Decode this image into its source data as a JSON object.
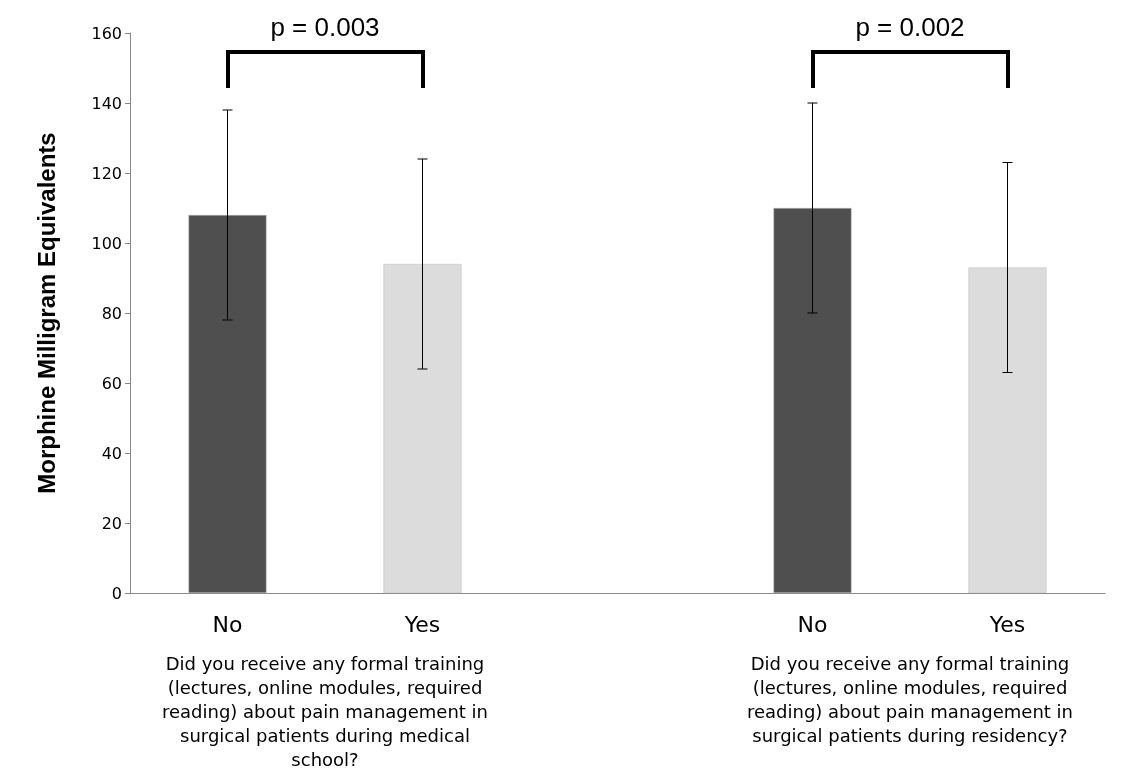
{
  "chart_data": {
    "type": "bar",
    "ylabel": "Morphine Milligram Equivalents",
    "categories": [
      "No",
      "Yes",
      null,
      "No",
      "Yes"
    ],
    "values": [
      108,
      94,
      null,
      110,
      93
    ],
    "colors": [
      "#4f4f4f",
      "#dcdcdc",
      "#dcdcdc",
      "#4f4f4f",
      "#dcdcdc"
    ],
    "errors": [
      30,
      30,
      null,
      30,
      30
    ],
    "ylim": [
      0,
      160
    ],
    "yticks": [
      0,
      20,
      40,
      60,
      80,
      100,
      120,
      140,
      160
    ],
    "annotations": [
      "p = 0.003",
      "p = 0.002",
      "Did you receive any formal training (lectures, online modules, required reading) about pain management in surgical patients during medical school?",
      "Did you receive any formal training (lectures, online modules, required reading) about pain management in surgical patients during residency?"
    ]
  }
}
